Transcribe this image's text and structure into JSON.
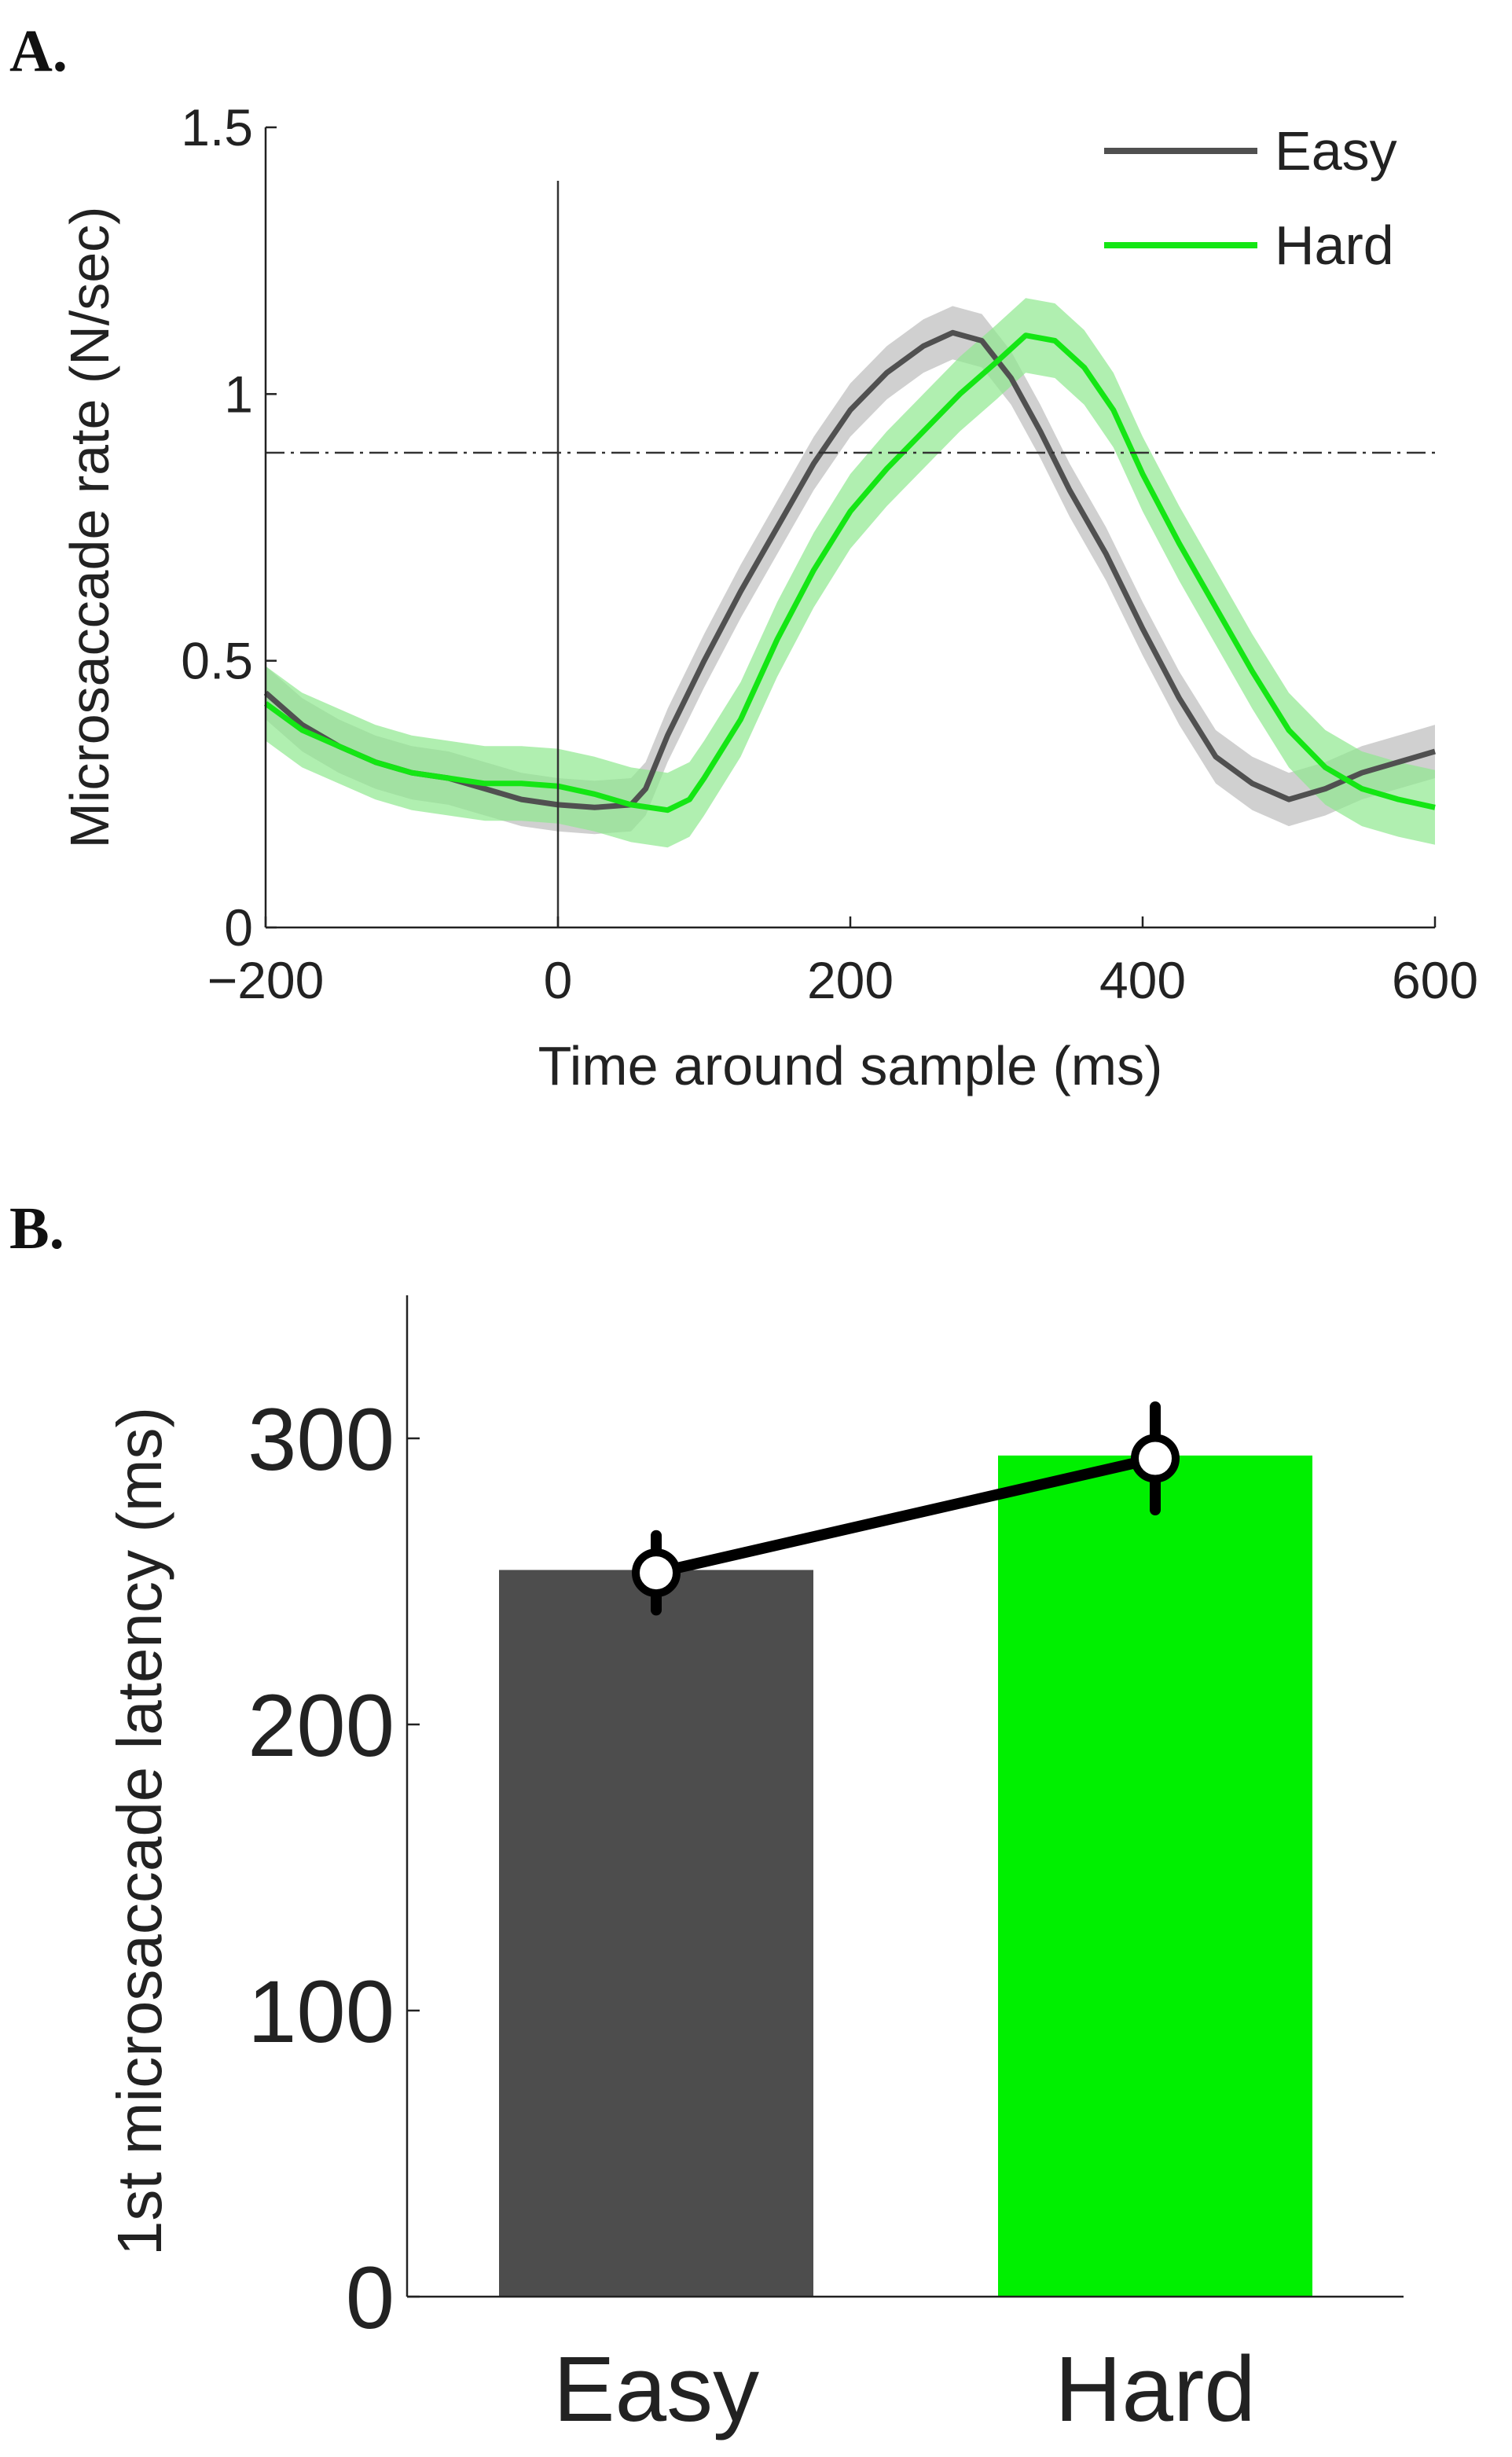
{
  "chart_data": [
    {
      "panel": "A.",
      "type": "line",
      "xlabel": "Time around sample (ms)",
      "ylabel": "Microsaccade rate (N/sec)",
      "xlim": [
        -200,
        600
      ],
      "ylim": [
        0,
        1.5
      ],
      "xticks": [
        -200,
        0,
        200,
        400,
        600
      ],
      "yticks": [
        0,
        0.5,
        1,
        1.5
      ],
      "xtick_labels": [
        "−200",
        "0",
        "200",
        "400",
        "600"
      ],
      "ytick_labels": [
        "0",
        "0.5",
        "1",
        "1.5"
      ],
      "vline_x": 0,
      "hline_y": 0.89,
      "legend": {
        "position": "top-right",
        "entries": [
          "Easy",
          "Hard"
        ]
      },
      "series": [
        {
          "name": "Easy",
          "color": "#505050",
          "band_color": "#c8c8c8",
          "x": [
            -200,
            -175,
            -150,
            -125,
            -100,
            -75,
            -50,
            -25,
            0,
            25,
            50,
            60,
            75,
            100,
            125,
            150,
            175,
            200,
            225,
            250,
            270,
            290,
            310,
            330,
            350,
            375,
            400,
            425,
            450,
            475,
            500,
            525,
            550,
            575,
            600
          ],
          "y": [
            0.44,
            0.38,
            0.34,
            0.31,
            0.29,
            0.28,
            0.26,
            0.24,
            0.23,
            0.225,
            0.23,
            0.26,
            0.36,
            0.5,
            0.63,
            0.75,
            0.87,
            0.97,
            1.04,
            1.09,
            1.115,
            1.1,
            1.03,
            0.93,
            0.82,
            0.7,
            0.56,
            0.43,
            0.32,
            0.27,
            0.24,
            0.26,
            0.29,
            0.31,
            0.33
          ],
          "err": 0.05
        },
        {
          "name": "Hard",
          "color": "#14e614",
          "band_color": "#8ee88e",
          "x": [
            -200,
            -175,
            -150,
            -125,
            -100,
            -75,
            -50,
            -25,
            0,
            25,
            50,
            75,
            90,
            100,
            125,
            150,
            175,
            200,
            225,
            250,
            275,
            300,
            320,
            340,
            360,
            380,
            400,
            425,
            450,
            475,
            500,
            525,
            550,
            575,
            600
          ],
          "y": [
            0.42,
            0.37,
            0.34,
            0.31,
            0.29,
            0.28,
            0.27,
            0.27,
            0.265,
            0.25,
            0.23,
            0.22,
            0.24,
            0.28,
            0.39,
            0.54,
            0.67,
            0.78,
            0.86,
            0.93,
            1.0,
            1.06,
            1.11,
            1.1,
            1.05,
            0.97,
            0.85,
            0.72,
            0.6,
            0.48,
            0.37,
            0.3,
            0.26,
            0.24,
            0.225
          ],
          "err": 0.07
        }
      ]
    },
    {
      "panel": "B.",
      "type": "bar",
      "ylabel": "1st microsaccade latency (ms)",
      "ylim": [
        0,
        350
      ],
      "yticks": [
        0,
        100,
        200,
        300
      ],
      "ytick_labels": [
        "0",
        "100",
        "200",
        "300"
      ],
      "categories": [
        "Easy",
        "Hard"
      ],
      "values": [
        254,
        294
      ],
      "colors": [
        "#4d4d4d",
        "#00f000"
      ],
      "points": [
        253,
        293
      ],
      "errors": [
        13,
        18
      ]
    }
  ]
}
